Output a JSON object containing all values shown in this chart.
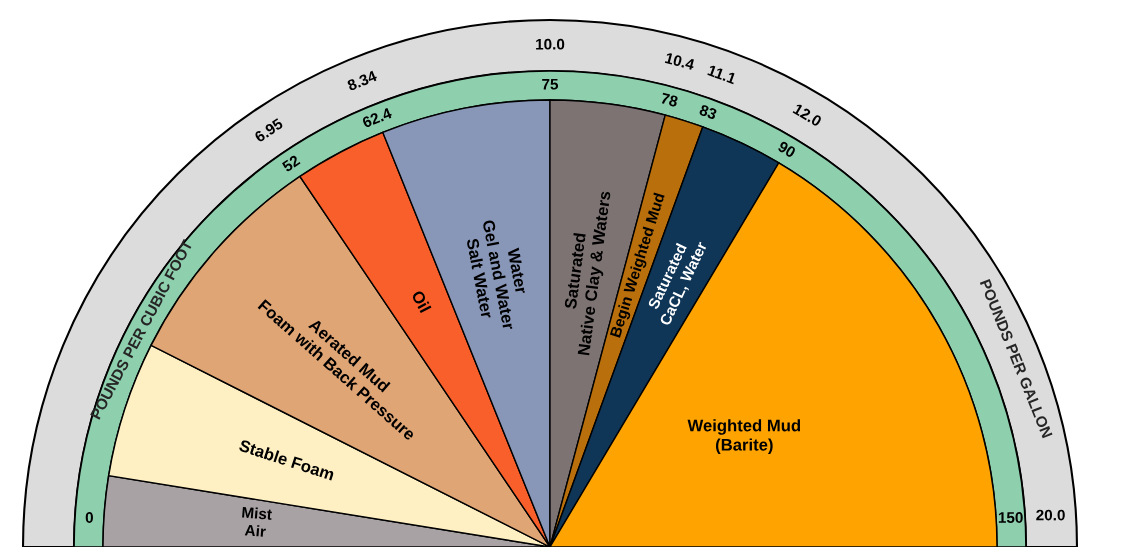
{
  "chart_data": {
    "type": "pie",
    "categories": [
      "Mist\nAir",
      "Stable Foam",
      "Aerated Mud\nFoam with Back Pressure",
      "Oil",
      "Water\nGel and Water\nSalt Water",
      "Saturated\nNative Clay & Waters",
      "Begin Weighted Mud",
      "Saturated\nCaCL, Water",
      "Weighted Mud\n(Barite)"
    ],
    "values": [
      5.1,
      9.8,
      16.2,
      6.7,
      12.2,
      8.3,
      2.8,
      6.0,
      32.9
    ],
    "colors": [
      "#a8a2a4",
      "#fff0c4",
      "#e0a574",
      "#f95f2a",
      "#8896b8",
      "#7e7373",
      "#b86f0c",
      "#0f3557",
      "#ffa300"
    ],
    "ylabel": "POUNDS PER CUBIC FOOT",
    "y2label": "POUNDS PER GALLON",
    "annotations": [
      "0",
      "52",
      "62.4",
      "75",
      "78",
      "83",
      "90",
      "150",
      "6.95",
      "8.34",
      "10.0",
      "10.4",
      "11.1",
      "12.0",
      "20.0"
    ]
  }
}
